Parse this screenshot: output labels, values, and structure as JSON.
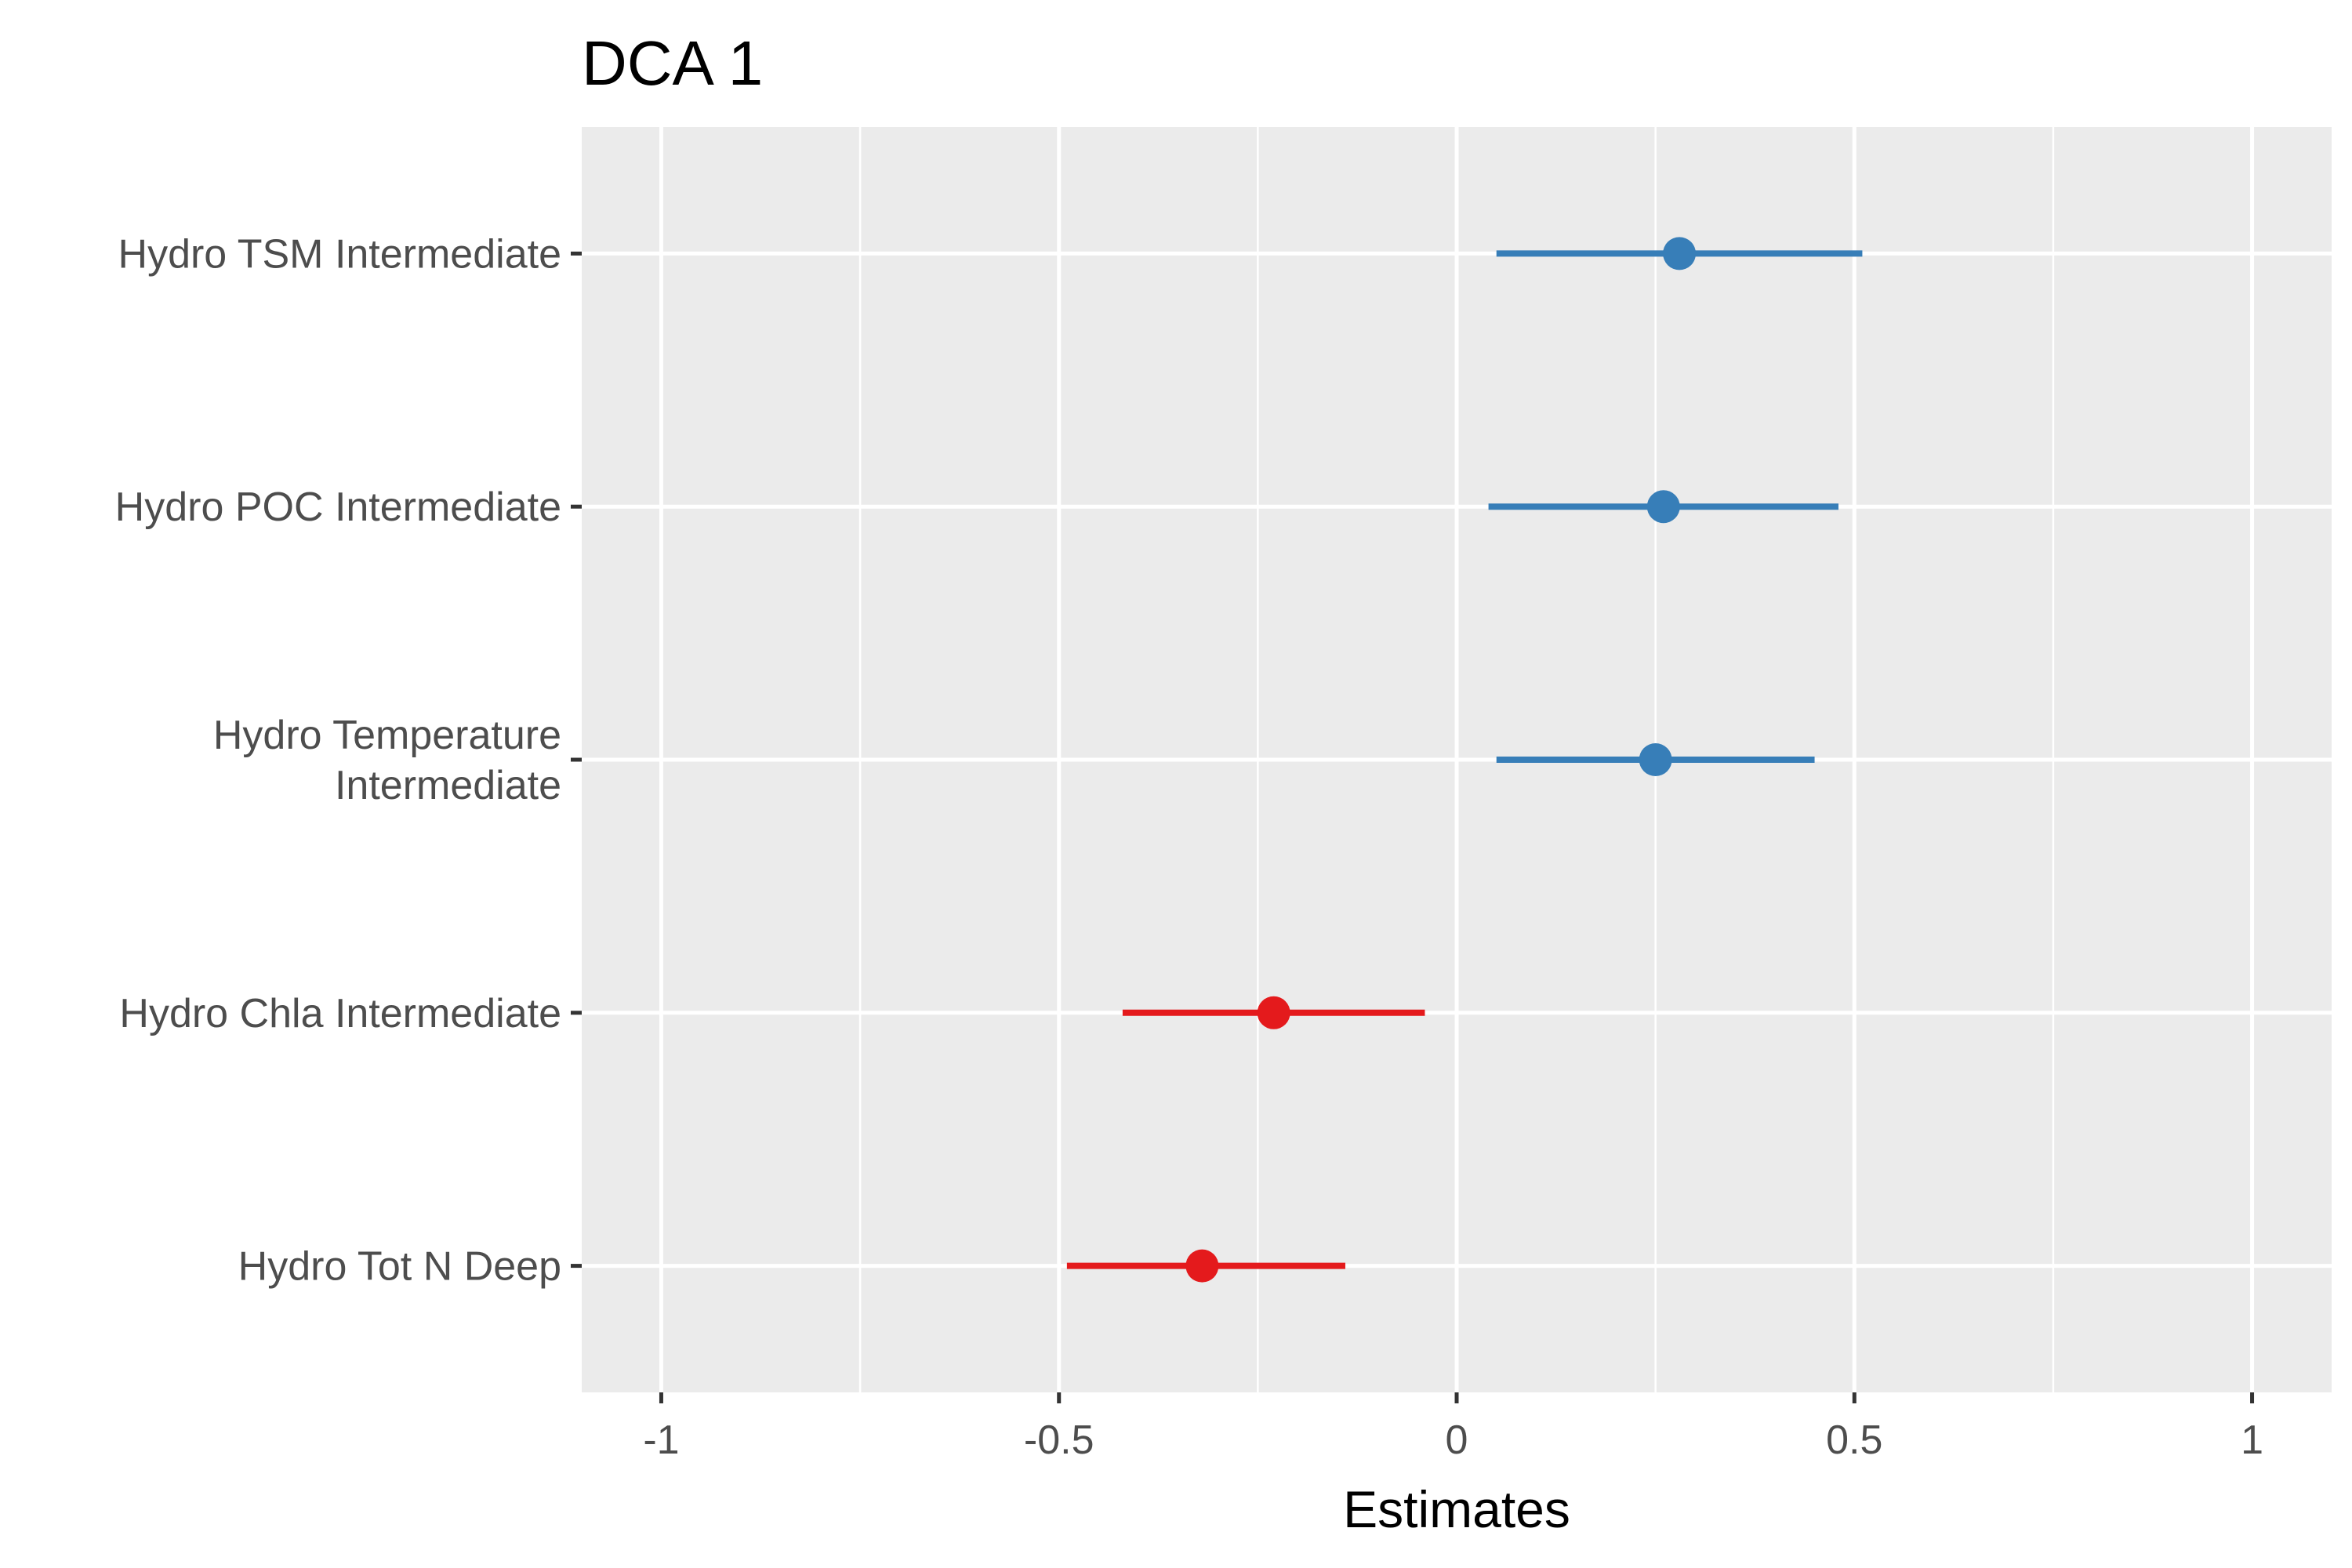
{
  "chart_data": {
    "type": "scatter",
    "title": "DCA 1",
    "subtitle": "",
    "xlabel": "Estimates",
    "ylabel": "",
    "xlim": [
      -1.1,
      1.1
    ],
    "x_ticks": [
      -1,
      -0.5,
      0,
      0.5,
      1
    ],
    "x_tick_labels": [
      "-1",
      "-0.5",
      "0",
      "0.5",
      "1"
    ],
    "x_minor_ticks": [
      -0.75,
      -0.25,
      0.25,
      0.75
    ],
    "grid": true,
    "legend": "none",
    "terms": [
      {
        "label_lines": [
          "Hydro TSM Intermediate"
        ],
        "estimate": 0.28,
        "ci_low": 0.05,
        "ci_high": 0.51,
        "color": "#377eb8"
      },
      {
        "label_lines": [
          "Hydro POC Intermediate"
        ],
        "estimate": 0.26,
        "ci_low": 0.04,
        "ci_high": 0.48,
        "color": "#377eb8"
      },
      {
        "label_lines": [
          "Hydro Temperature",
          "Intermediate"
        ],
        "estimate": 0.25,
        "ci_low": 0.05,
        "ci_high": 0.45,
        "color": "#377eb8"
      },
      {
        "label_lines": [
          "Hydro Chla Intermediate"
        ],
        "estimate": -0.23,
        "ci_low": -0.42,
        "ci_high": -0.04,
        "color": "#e41a1c"
      },
      {
        "label_lines": [
          "Hydro Tot N Deep"
        ],
        "estimate": -0.32,
        "ci_low": -0.49,
        "ci_high": -0.14,
        "color": "#e41a1c"
      }
    ],
    "colors": {
      "panel_background": "#ebebeb",
      "grid": "#ffffff",
      "positive": "#377eb8",
      "negative": "#e41a1c"
    }
  }
}
